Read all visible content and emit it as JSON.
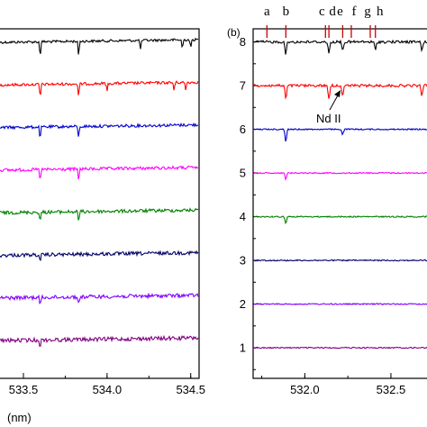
{
  "chart_data": [
    {
      "type": "line",
      "panel_label": "",
      "xlabel": "(nm)",
      "x_ticks": [
        "533.5",
        "534.0",
        "534.5"
      ],
      "xlim": [
        533.36,
        534.55
      ],
      "y_ticks": [],
      "absorption_lines": [
        533.6,
        533.83,
        534.4
      ],
      "series": [
        {
          "color": "#000000",
          "baseline": 8,
          "lines": [
            533.6,
            533.83,
            534.2,
            534.45,
            534.5
          ]
        },
        {
          "color": "#ff0000",
          "baseline": 7,
          "lines": [
            533.6,
            533.83,
            534.0,
            534.4,
            534.47
          ]
        },
        {
          "color": "#0000cc",
          "baseline": 6,
          "lines": [
            533.6,
            533.83
          ]
        },
        {
          "color": "#ff00ff",
          "baseline": 5,
          "lines": [
            533.6,
            533.83
          ]
        },
        {
          "color": "#008000",
          "baseline": 4,
          "lines": [
            533.6,
            533.83
          ]
        },
        {
          "color": "#000066",
          "baseline": 3,
          "lines": [
            533.6
          ]
        },
        {
          "color": "#8000ff",
          "baseline": 2,
          "lines": [
            533.6,
            533.83
          ]
        },
        {
          "color": "#800080",
          "baseline": 1,
          "lines": [
            533.6
          ]
        }
      ]
    },
    {
      "type": "line",
      "panel_label": "(b)",
      "xlabel": "",
      "x_ticks": [
        "532.0",
        "532.5"
      ],
      "xlim": [
        531.7,
        532.72
      ],
      "y_ticks": [
        "1",
        "2",
        "3",
        "4",
        "5",
        "6",
        "7",
        "8"
      ],
      "ylim": [
        0.3,
        8.3
      ],
      "line_markers": [
        {
          "label": "a",
          "x": 531.78
        },
        {
          "label": "b",
          "x": 531.89
        },
        {
          "label": "c",
          "x": 532.12
        },
        {
          "label": "d",
          "x": 532.14
        },
        {
          "label": "e",
          "x": 532.22
        },
        {
          "label": "f",
          "x": 532.27
        },
        {
          "label": "g",
          "x": 532.38
        },
        {
          "label": "h",
          "x": 532.41
        }
      ],
      "annotation": "Nd II",
      "series": [
        {
          "color": "#000000",
          "baseline": 8,
          "lines": [
            531.89,
            532.14,
            532.22,
            532.41,
            532.68
          ]
        },
        {
          "color": "#ff0000",
          "baseline": 7,
          "lines": [
            531.89,
            532.14,
            532.22,
            532.68
          ]
        },
        {
          "color": "#0000cc",
          "baseline": 6,
          "lines": [
            531.89,
            532.22
          ]
        },
        {
          "color": "#ff00ff",
          "baseline": 5,
          "lines": [
            531.89
          ]
        },
        {
          "color": "#008000",
          "baseline": 4,
          "lines": [
            531.89
          ]
        },
        {
          "color": "#000066",
          "baseline": 3,
          "lines": []
        },
        {
          "color": "#8000ff",
          "baseline": 2,
          "lines": []
        },
        {
          "color": "#800080",
          "baseline": 1,
          "lines": []
        }
      ]
    }
  ]
}
